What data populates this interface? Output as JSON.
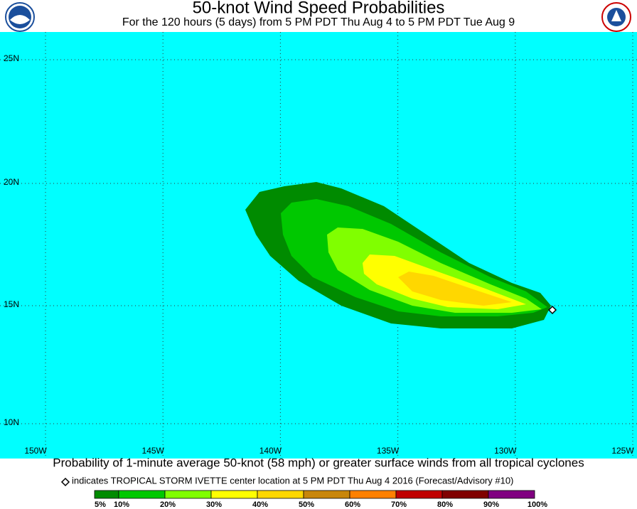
{
  "header": {
    "title": "50-knot Wind Speed Probabilities",
    "subtitle": "For the 120 hours (5 days) from 5 PM PDT Thu Aug 4 to 5 PM PDT Tue Aug 9"
  },
  "map": {
    "lat_labels": [
      "25N",
      "20N",
      "15N",
      "10N"
    ],
    "lon_labels": [
      "150W",
      "145W",
      "140W",
      "135W",
      "130W",
      "125W"
    ]
  },
  "caption": "Probability of 1-minute average 50-knot (58 mph) or greater surface winds from all tropical cyclones",
  "note": "indicates TROPICAL STORM IVETTE center location at 5 PM PDT Thu Aug 4 2016 (Forecast/Advisory #10)",
  "legend": {
    "labels": [
      "5%",
      "10%",
      "20%",
      "30%",
      "40%",
      "50%",
      "60%",
      "70%",
      "80%",
      "90%",
      "100%"
    ],
    "colors": [
      "#008b00",
      "#00c800",
      "#80ff00",
      "#ffff00",
      "#ffd700",
      "#c8860b",
      "#ff8000",
      "#c00000",
      "#800000",
      "#800080"
    ]
  }
}
